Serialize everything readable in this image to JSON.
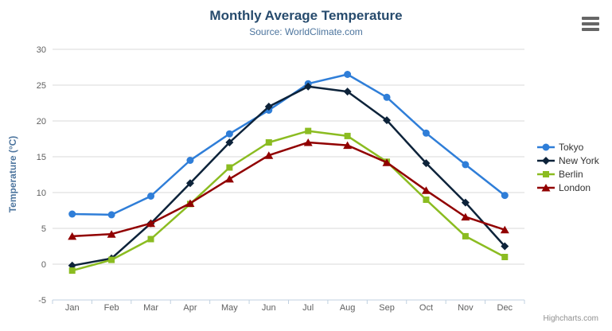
{
  "header": {
    "title": "Monthly Average Temperature",
    "subtitle": "Source: WorldClimate.com"
  },
  "credits": {
    "label": "Highcharts.com"
  },
  "export_menu": {
    "icon": "hamburger-menu-icon"
  },
  "colors": {
    "title": "#274b6d",
    "subtitle": "#4d759e",
    "axis_title": "#4d759e",
    "tick_label": "#606060",
    "gridline": "#d8d8d8",
    "axis_line": "#c0d0e0",
    "legend_text": "#333333",
    "credits_text": "#909090",
    "menu_icon": "#666666"
  },
  "chart_data": {
    "type": "line",
    "title": "Monthly Average Temperature",
    "subtitle": "Source: WorldClimate.com",
    "categories": [
      "Jan",
      "Feb",
      "Mar",
      "Apr",
      "May",
      "Jun",
      "Jul",
      "Aug",
      "Sep",
      "Oct",
      "Nov",
      "Dec"
    ],
    "xlabel": "",
    "ylabel": "Temperature (°C)",
    "ylim": [
      -5,
      30
    ],
    "ytick_step": 5,
    "grid": true,
    "legend_position": "right",
    "series": [
      {
        "name": "Tokyo",
        "color": "#2f7ed8",
        "marker": "circle",
        "values": [
          7.0,
          6.9,
          9.5,
          14.5,
          18.2,
          21.5,
          25.2,
          26.5,
          23.3,
          18.3,
          13.9,
          9.6
        ]
      },
      {
        "name": "New York",
        "color": "#0d233a",
        "marker": "diamond",
        "values": [
          -0.2,
          0.8,
          5.7,
          11.3,
          17.0,
          22.0,
          24.8,
          24.1,
          20.1,
          14.1,
          8.6,
          2.5
        ]
      },
      {
        "name": "Berlin",
        "color": "#8bbc21",
        "marker": "square",
        "values": [
          -0.9,
          0.6,
          3.5,
          8.4,
          13.5,
          17.0,
          18.6,
          17.9,
          14.3,
          9.0,
          3.9,
          1.0
        ]
      },
      {
        "name": "London",
        "color": "#910000",
        "marker": "triangle",
        "values": [
          3.9,
          4.2,
          5.7,
          8.5,
          11.9,
          15.2,
          17.0,
          16.6,
          14.2,
          10.3,
          6.6,
          4.8
        ]
      }
    ]
  }
}
